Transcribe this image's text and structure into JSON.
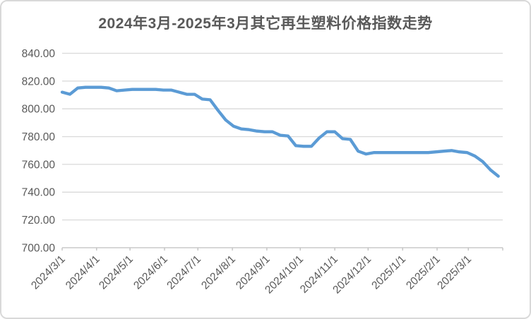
{
  "chart_data": {
    "type": "line",
    "title": "2024年3月-2025年3月其它再生塑料价格指数走势",
    "xlabel": "",
    "ylabel": "",
    "ylim": [
      700,
      840
    ],
    "y_tick_step": 20,
    "grid": true,
    "legend_position": "none",
    "axis_start": "2024/3/1",
    "axis_end": "2025/4/1",
    "y_ticks": [
      {
        "value": 840,
        "label": "840.00"
      },
      {
        "value": 820,
        "label": "820.00"
      },
      {
        "value": 800,
        "label": "800.00"
      },
      {
        "value": 780,
        "label": "780.00"
      },
      {
        "value": 760,
        "label": "760.00"
      },
      {
        "value": 740,
        "label": "740.00"
      },
      {
        "value": 720,
        "label": "720.00"
      },
      {
        "value": 700,
        "label": "700.00"
      }
    ],
    "x_ticks": [
      {
        "date": "2024/3/1",
        "label": "2024/3/1"
      },
      {
        "date": "2024/4/1",
        "label": "2024/4/1"
      },
      {
        "date": "2024/5/1",
        "label": "2024/5/1"
      },
      {
        "date": "2024/6/1",
        "label": "2024/6/1"
      },
      {
        "date": "2024/7/1",
        "label": "2024/7/1"
      },
      {
        "date": "2024/8/1",
        "label": "2024/8/1"
      },
      {
        "date": "2024/9/1",
        "label": "2024/9/1"
      },
      {
        "date": "2024/10/1",
        "label": "2024/10/1"
      },
      {
        "date": "2024/11/1",
        "label": "2024/11/1"
      },
      {
        "date": "2024/12/1",
        "label": "2024/12/1"
      },
      {
        "date": "2025/1/1",
        "label": "2025/1/1"
      },
      {
        "date": "2025/2/1",
        "label": "2025/2/1"
      },
      {
        "date": "2025/3/1",
        "label": "2025/3/1"
      },
      {
        "date": "2025/4/1",
        "label": ""
      }
    ],
    "x": [
      "2024/3/1",
      "2024/3/8",
      "2024/3/15",
      "2024/3/22",
      "2024/3/29",
      "2024/4/5",
      "2024/4/12",
      "2024/4/19",
      "2024/4/26",
      "2024/5/3",
      "2024/5/10",
      "2024/5/17",
      "2024/5/24",
      "2024/5/31",
      "2024/6/7",
      "2024/6/14",
      "2024/6/21",
      "2024/6/28",
      "2024/7/5",
      "2024/7/12",
      "2024/7/19",
      "2024/7/26",
      "2024/8/2",
      "2024/8/9",
      "2024/8/16",
      "2024/8/23",
      "2024/8/30",
      "2024/9/6",
      "2024/9/13",
      "2024/9/20",
      "2024/9/27",
      "2024/10/4",
      "2024/10/11",
      "2024/10/18",
      "2024/10/25",
      "2024/11/1",
      "2024/11/8",
      "2024/11/15",
      "2024/11/22",
      "2024/11/29",
      "2024/12/6",
      "2024/12/13",
      "2024/12/20",
      "2024/12/27",
      "2025/1/3",
      "2025/1/10",
      "2025/1/17",
      "2025/1/24",
      "2025/1/31",
      "2025/2/7",
      "2025/2/14",
      "2025/2/21",
      "2025/2/28",
      "2025/3/7",
      "2025/3/14",
      "2025/3/21",
      "2025/3/28"
    ],
    "values": [
      812,
      810.5,
      815,
      815.5,
      815.5,
      815.5,
      815,
      813,
      813.5,
      814,
      814,
      814,
      814,
      813.5,
      813.5,
      812,
      810.5,
      810.5,
      807,
      806.5,
      799,
      792,
      787.5,
      785.5,
      785,
      784,
      783.5,
      783.5,
      781,
      780.5,
      773.5,
      773,
      773,
      779,
      783.5,
      783.5,
      778.5,
      778,
      769.5,
      767.5,
      768.5,
      768.5,
      768.5,
      768.5,
      768.5,
      768.5,
      768.5,
      768.5,
      769,
      769.5,
      770,
      769,
      768.5,
      766,
      762,
      756,
      751.5
    ],
    "colors": {
      "line": "#5b9bd5",
      "gridline": "#d9d9d9",
      "axis": "#bfbfbf",
      "label": "#595959",
      "title": "#595959",
      "background": "#ffffff"
    }
  }
}
